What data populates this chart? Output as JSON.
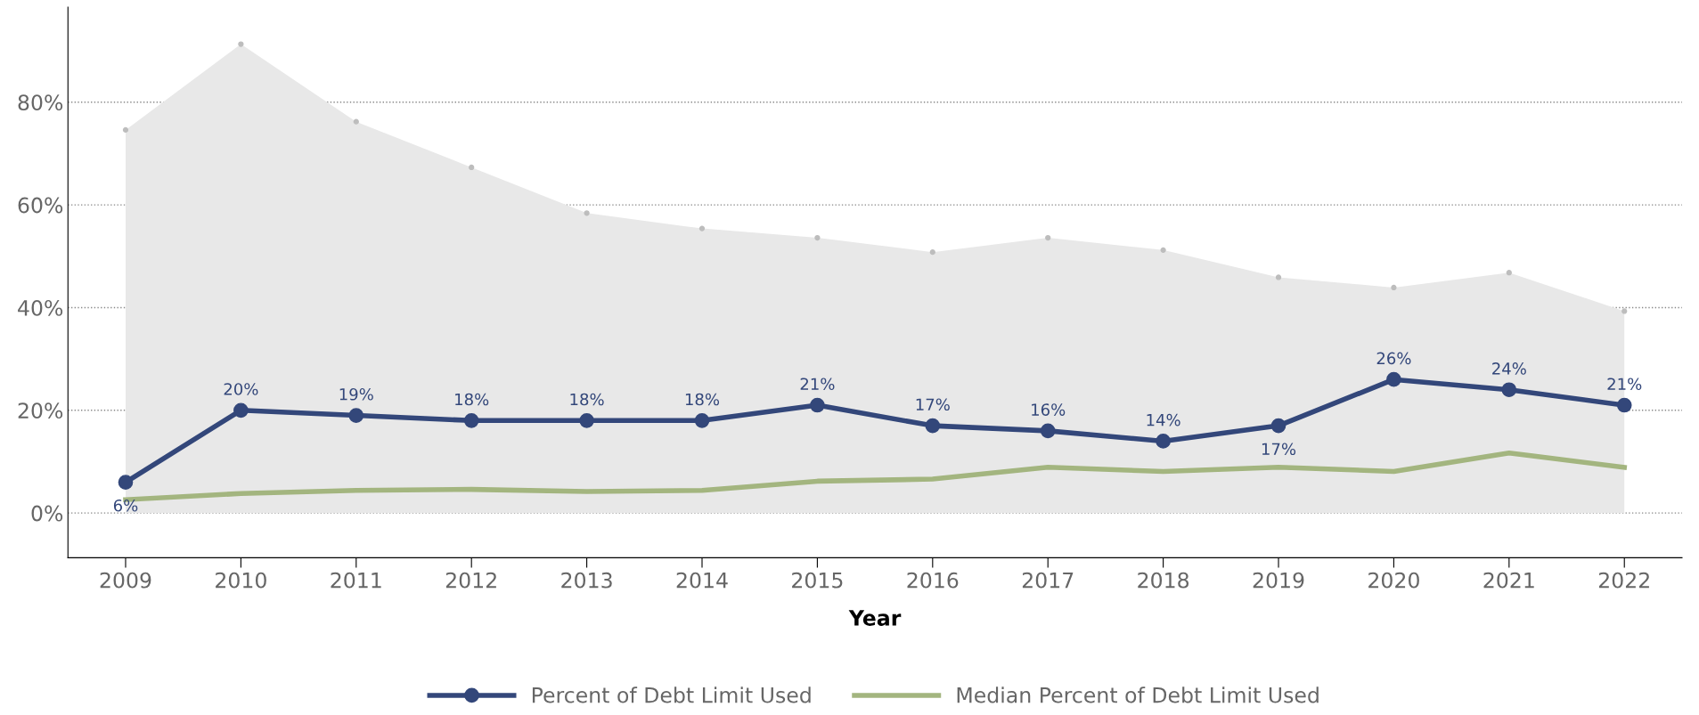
{
  "chart_data": {
    "type": "line",
    "xlabel": "Year",
    "categories": [
      "2009",
      "2010",
      "2011",
      "2012",
      "2013",
      "2014",
      "2015",
      "2016",
      "2017",
      "2018",
      "2019",
      "2020",
      "2021",
      "2022"
    ],
    "series": [
      {
        "type": "area",
        "color": "#e8e8e8",
        "values": [
          74.6,
          91.3,
          76.2,
          67.3,
          58.4,
          55.4,
          53.6,
          50.8,
          53.6,
          51.2,
          45.9,
          43.9,
          46.8,
          39.3
        ]
      },
      {
        "name": "Percent of Debt Limit Used",
        "color": "#33477a",
        "marker": "circle",
        "values": [
          6,
          20,
          19,
          18,
          18,
          18,
          21,
          17,
          16,
          14,
          17,
          26,
          24,
          21
        ],
        "value_labels": [
          "6%",
          "20%",
          "19%",
          "18%",
          "18%",
          "18%",
          "21%",
          "17%",
          "16%",
          "14%",
          "17%",
          "26%",
          "24%",
          "21%"
        ]
      },
      {
        "name": "Median Percent of Debt Limit Used",
        "color": "#a3b57f",
        "marker": "none",
        "values": [
          2.6,
          3.8,
          4.4,
          4.6,
          4.2,
          4.4,
          6.2,
          6.6,
          8.9,
          8.1,
          8.9,
          8.1,
          11.7,
          8.9
        ]
      }
    ],
    "ylim": [
      -8.7,
      98.5
    ],
    "yticks": [
      {
        "value": 0,
        "label": "0%"
      },
      {
        "value": 20,
        "label": "20%"
      },
      {
        "value": 40,
        "label": "40%"
      },
      {
        "value": 60,
        "label": "60%"
      },
      {
        "value": 80,
        "label": "80%"
      }
    ],
    "grid": "y",
    "legend": "bottom"
  }
}
